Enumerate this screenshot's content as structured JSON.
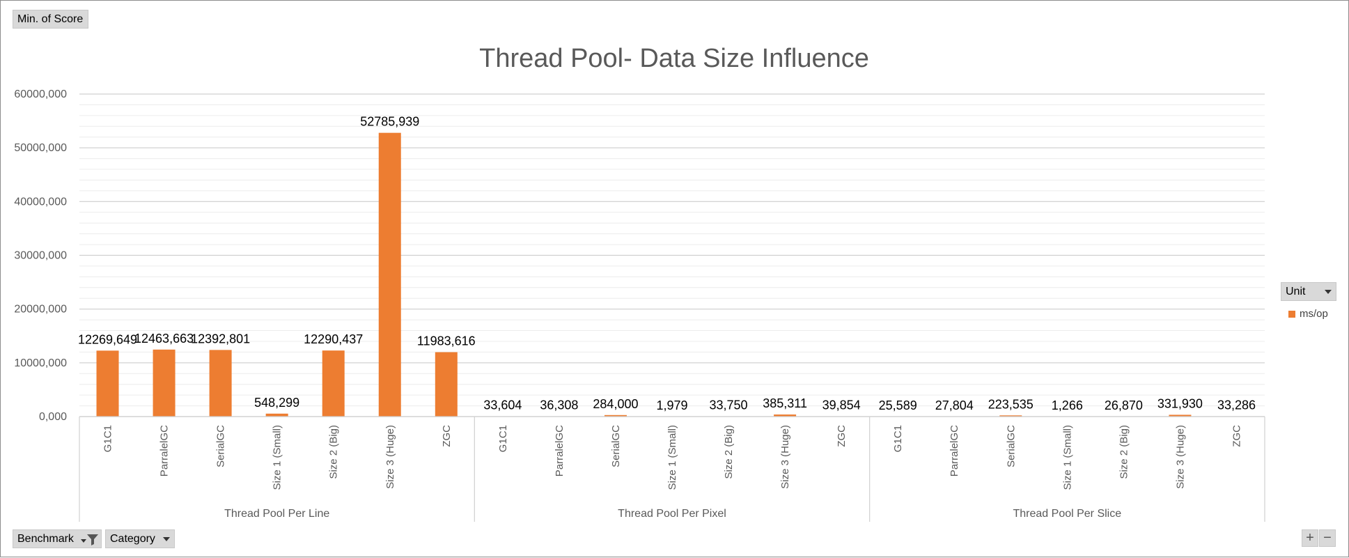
{
  "pivot": {
    "value_field": "Min. of Score",
    "row_fields": [
      "Benchmark",
      "Category"
    ],
    "legend_field": "Unit"
  },
  "zoom": {
    "plus": "+",
    "minus": "−"
  },
  "icons": {
    "filter": "filter-icon",
    "dropdown": "dropdown-arrow-icon"
  },
  "chart_data": {
    "type": "bar",
    "title": "Thread Pool- Data Size Influence",
    "xlabel": "",
    "ylabel": "",
    "ylim": [
      0,
      60000000
    ],
    "yticks": [
      0,
      10000000,
      20000000,
      30000000,
      40000000,
      50000000,
      60000000
    ],
    "ytick_labels": [
      "0,000",
      "10000,000",
      "20000,000",
      "30000,000",
      "40000,000",
      "50000,000",
      "60000,000"
    ],
    "grid": true,
    "legend_position": "right",
    "color": "#ED7D31",
    "groups": [
      {
        "name": "Thread Pool Per Line",
        "categories": [
          "G1C1",
          "ParralelGC",
          "SerialGC",
          "Size 1 (Small)",
          "Size 2 (Big)",
          "Size 3 (Huge)",
          "ZGC"
        ],
        "values": [
          12269649,
          12463663,
          12392801,
          548299,
          12290437,
          52785939,
          11983616
        ],
        "labels": [
          "12269,649",
          "12463,663",
          "12392,801",
          "548,299",
          "12290,437",
          "52785,939",
          "11983,616"
        ]
      },
      {
        "name": "Thread Pool Per Pixel",
        "categories": [
          "G1C1",
          "ParralelGC",
          "SerialGC",
          "Size 1 (Small)",
          "Size 2 (Big)",
          "Size 3 (Huge)",
          "ZGC"
        ],
        "values": [
          33604,
          36308,
          284000,
          1979,
          33750,
          385311,
          39854
        ],
        "labels": [
          "33,604",
          "36,308",
          "284,000",
          "1,979",
          "33,750",
          "385,311",
          "39,854"
        ]
      },
      {
        "name": "Thread Pool Per Slice",
        "categories": [
          "G1C1",
          "ParralelGC",
          "SerialGC",
          "Size 1 (Small)",
          "Size 2 (Big)",
          "Size 3 (Huge)",
          "ZGC"
        ],
        "values": [
          25589,
          27804,
          223535,
          1266,
          26870,
          331930,
          33286
        ],
        "labels": [
          "25,589",
          "27,804",
          "223,535",
          "1,266",
          "26,870",
          "331,930",
          "33,286"
        ]
      }
    ],
    "series": [
      {
        "name": "ms/op"
      }
    ]
  }
}
